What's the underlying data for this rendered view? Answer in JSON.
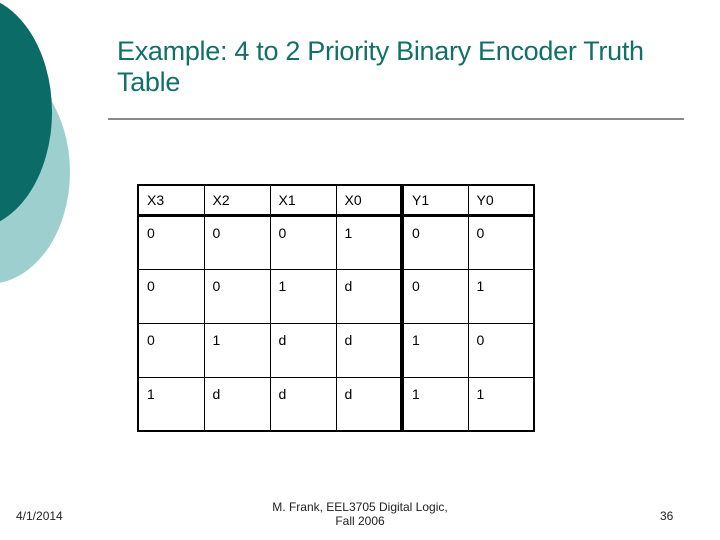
{
  "title": "Example: 4 to 2 Priority Binary Encoder Truth Table",
  "colors": {
    "accent_dark": "#0b6b66",
    "accent_light": "#9ecfcf",
    "title": "#136f69"
  },
  "table": {
    "headers": [
      "X3",
      "X2",
      "X1",
      "X0",
      "Y1",
      "Y0"
    ],
    "rows": [
      [
        "0",
        "0",
        "0",
        "1",
        "0",
        "0"
      ],
      [
        "0",
        "0",
        "1",
        "d",
        "0",
        "1"
      ],
      [
        "0",
        "1",
        "d",
        "d",
        "1",
        "0"
      ],
      [
        "1",
        "d",
        "d",
        "d",
        "1",
        "1"
      ]
    ]
  },
  "footer": {
    "date": "4/1/2014",
    "credit_line1": "M. Frank, EEL3705 Digital Logic,",
    "credit_line2": "Fall 2006",
    "page_number": "36"
  }
}
